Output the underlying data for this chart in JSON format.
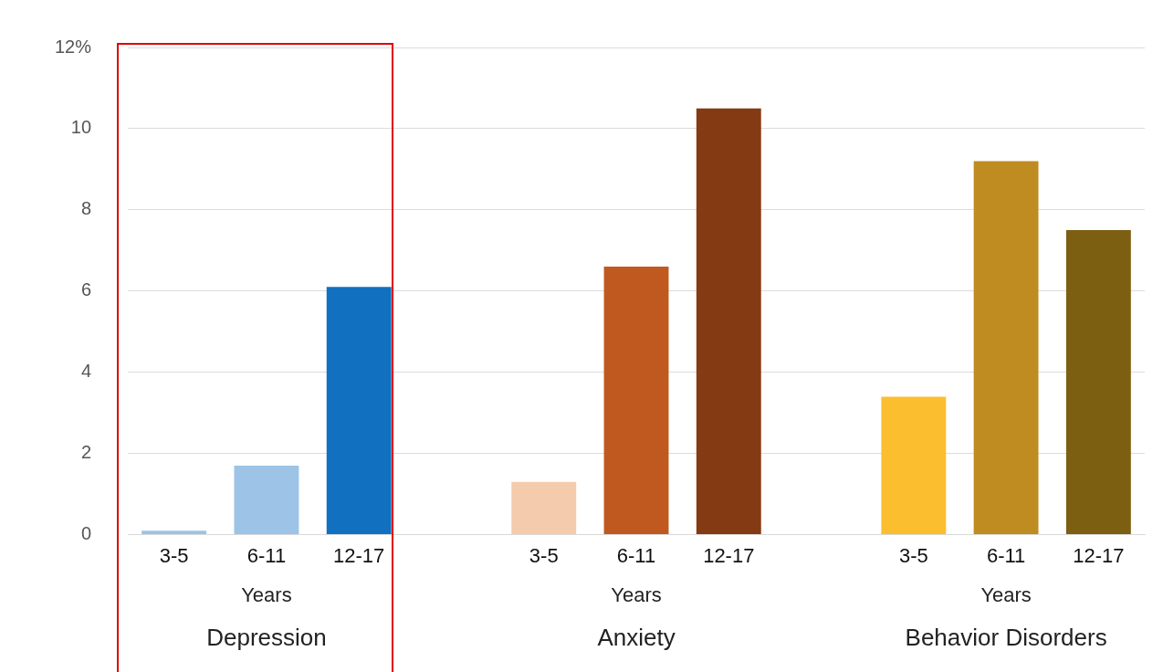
{
  "chart_data": {
    "type": "bar",
    "categories": [
      "3-5",
      "6-11",
      "12-17",
      null,
      "3-5",
      "6-11",
      "12-17",
      null,
      "3-5",
      "6-11",
      "12-17"
    ],
    "values": [
      0.1,
      1.7,
      6.1,
      null,
      1.3,
      6.6,
      10.5,
      null,
      3.4,
      9.2,
      7.5
    ],
    "colors": [
      "#9dc3e6",
      "#9dc3e6",
      "#1170bf",
      null,
      "#f5cbad",
      "#c0591f",
      "#843a13",
      null,
      "#fbbe2f",
      "#bf8c21",
      "#7d5f12"
    ],
    "ylim": [
      0,
      12
    ],
    "yticks": [
      0,
      2,
      4,
      6,
      8,
      10,
      {
        "value": 12,
        "label": "12%"
      }
    ],
    "grid": "y",
    "legend": false,
    "annotations": [
      "Years",
      "Years",
      "Years",
      "Depression",
      "Anxiety",
      "Behavior Disorders"
    ]
  }
}
